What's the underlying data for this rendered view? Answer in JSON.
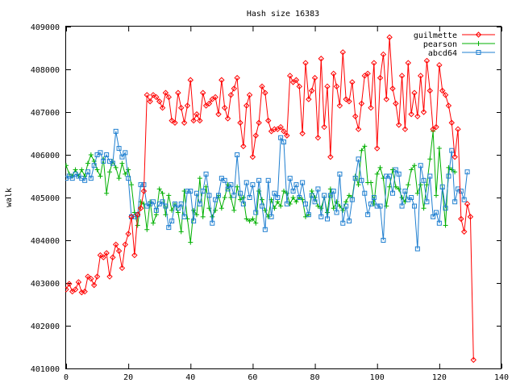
{
  "chart_data": {
    "type": "line",
    "title": "Hash size 16383",
    "xlabel": "",
    "ylabel": "walk",
    "xlim": [
      0,
      140
    ],
    "ylim": [
      401000,
      409000
    ],
    "x_ticks": [
      0,
      20,
      40,
      60,
      80,
      100,
      120,
      140
    ],
    "y_ticks": [
      401000,
      402000,
      403000,
      404000,
      405000,
      406000,
      407000,
      408000,
      409000
    ],
    "x_tick_labels": [
      "0",
      "20",
      "40",
      "60",
      "80",
      "100",
      "120",
      "140"
    ],
    "y_tick_labels": [
      "401000",
      "402000",
      "403000",
      "404000",
      "405000",
      "406000",
      "407000",
      "408000",
      "409000"
    ],
    "grid": false,
    "legend_position": "top-right",
    "series": [
      {
        "name": "guilmette",
        "color": "#ff0000",
        "marker": "diamond",
        "values": [
          402850,
          402980,
          402800,
          402850,
          403020,
          402780,
          402800,
          403150,
          403100,
          402950,
          403150,
          403650,
          403600,
          403700,
          403150,
          403600,
          403900,
          403750,
          403350,
          403900,
          404150,
          404550,
          403650,
          404600,
          404750,
          405150,
          407400,
          407250,
          407400,
          407350,
          407250,
          407100,
          407450,
          407350,
          406800,
          406750,
          407450,
          407100,
          406750,
          407150,
          407750,
          406800,
          406950,
          406800,
          407450,
          407150,
          407200,
          407300,
          407350,
          406950,
          407750,
          407100,
          406850,
          407400,
          407550,
          407800,
          406750,
          406200,
          407150,
          407400,
          405950,
          406450,
          406750,
          407600,
          407450,
          406800,
          406550,
          406600,
          406600,
          406650,
          406550,
          406450,
          407850,
          407700,
          407750,
          407600,
          406500,
          408150,
          407300,
          407500,
          407800,
          406400,
          408250,
          406650,
          407600,
          405950,
          407900,
          407600,
          407150,
          408400,
          407300,
          407250,
          407700,
          406900,
          406600,
          407200,
          407850,
          407900,
          407100,
          408150,
          406150,
          407800,
          408350,
          407300,
          408750,
          407550,
          407200,
          406700,
          407850,
          406600,
          408150,
          406950,
          407450,
          406900,
          407850,
          407000,
          408200,
          407500,
          406600,
          406650,
          408100,
          407500,
          407400,
          407150,
          406750,
          405950,
          406600,
          404500,
          404200,
          404850,
          404550,
          401200
        ]
      },
      {
        "name": "pearson",
        "color": "#00b000",
        "marker": "plus",
        "values": [
          405750,
          405550,
          405500,
          405650,
          405500,
          405650,
          405500,
          405800,
          406000,
          405850,
          405650,
          405500,
          405900,
          405100,
          405600,
          405850,
          405700,
          405450,
          405800,
          405550,
          405650,
          405300,
          404650,
          404350,
          404900,
          404850,
          404250,
          404900,
          404400,
          404600,
          405200,
          405100,
          404600,
          405050,
          404700,
          404850,
          404650,
          404200,
          405150,
          404500,
          403950,
          404700,
          404600,
          405450,
          404550,
          405250,
          404750,
          404550,
          404700,
          405050,
          404750,
          405000,
          405300,
          405000,
          404700,
          405250,
          404950,
          405000,
          404500,
          404450,
          404500,
          404400,
          405150,
          404950,
          404700,
          404550,
          404950,
          404750,
          404900,
          404800,
          405150,
          405100,
          404850,
          405000,
          404900,
          405000,
          404950,
          404550,
          404600,
          405150,
          405000,
          404800,
          404750,
          405000,
          404650,
          405200,
          404750,
          404900,
          404800,
          404700,
          404900,
          405050,
          405000,
          405500,
          405300,
          406100,
          406200,
          405350,
          405350,
          404850,
          405550,
          405700,
          405450,
          404800,
          405250,
          405650,
          405250,
          405200,
          405000,
          404900,
          405300,
          405650,
          405750,
          405100,
          405300,
          404750,
          405300,
          405900,
          406550,
          405050,
          406150,
          405200,
          404350,
          405700,
          405650,
          405600
        ]
      },
      {
        "name": "abcd64",
        "color": "#1f7fd0",
        "marker": "square",
        "values": [
          405450,
          405500,
          405450,
          405550,
          405500,
          405450,
          405400,
          405600,
          405450,
          405750,
          406000,
          406050,
          405850,
          406000,
          405850,
          405800,
          406550,
          406150,
          405950,
          406050,
          405450,
          404550,
          404550,
          404600,
          405300,
          405300,
          404800,
          404850,
          404900,
          404700,
          404850,
          404900,
          404800,
          404300,
          404450,
          404850,
          404750,
          404850,
          404550,
          405150,
          405150,
          404450,
          405100,
          404850,
          405150,
          405550,
          405050,
          404400,
          404950,
          405050,
          405450,
          405400,
          405200,
          405300,
          405050,
          406000,
          405100,
          404850,
          405350,
          405000,
          405300,
          404650,
          405400,
          404800,
          404250,
          405400,
          404550,
          405100,
          405000,
          406400,
          406300,
          404850,
          405450,
          405150,
          405300,
          405000,
          405350,
          404850,
          404600,
          405050,
          404900,
          405200,
          404550,
          405050,
          404500,
          405050,
          405150,
          404650,
          405550,
          404400,
          404800,
          404450,
          404950,
          405450,
          405900,
          405400,
          405100,
          404600,
          404850,
          405000,
          404800,
          404800,
          404000,
          405500,
          405500,
          405100,
          405650,
          405550,
          404800,
          405150,
          404950,
          405000,
          404800,
          403800,
          405750,
          405400,
          404900,
          405500,
          404550,
          404650,
          404400,
          405250,
          404750,
          405500,
          406100,
          404900,
          405200,
          405150,
          404950,
          405600
        ]
      }
    ]
  }
}
